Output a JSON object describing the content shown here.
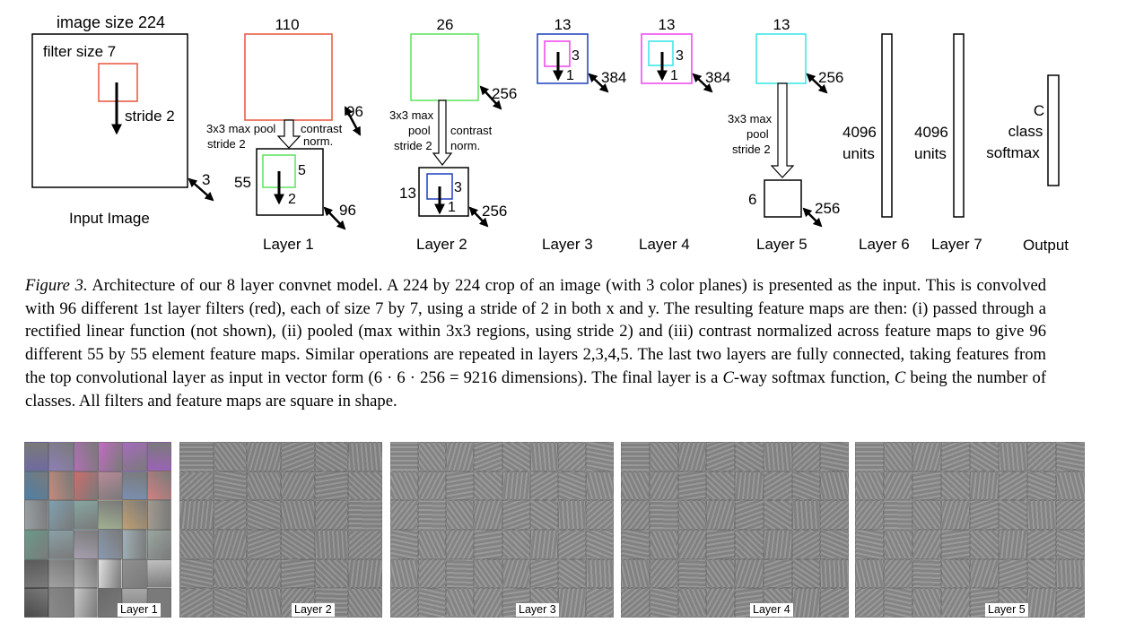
{
  "diagram": {
    "input": {
      "image_size": "image size 224",
      "filter_size": "filter size 7",
      "stride": "stride 2",
      "depth": "3",
      "label": "Input Image"
    },
    "layer1": {
      "size": "110",
      "pool1": "3x3 max pool",
      "pool2": "stride 2",
      "norm1": "contrast",
      "norm2": "norm.",
      "depth_top": "96",
      "map_size": "55",
      "filter": "5",
      "stride": "2",
      "depth_bottom": "96",
      "label": "Layer 1"
    },
    "layer2": {
      "size": "26",
      "pool1": "3x3 max",
      "pool2": "pool",
      "pool3": "stride 2",
      "norm1": "contrast",
      "norm2": "norm.",
      "depth_top": "256",
      "map_size": "13",
      "filter": "3",
      "stride": "1",
      "depth_bottom": "256",
      "label": "Layer 2"
    },
    "layer3": {
      "size": "13",
      "filter": "3",
      "stride": "1",
      "depth": "384",
      "label": "Layer 3"
    },
    "layer4": {
      "size": "13",
      "filter": "3",
      "stride": "1",
      "depth": "384",
      "label": "Layer 4"
    },
    "layer5": {
      "size": "13",
      "depth_top": "256",
      "pool1": "3x3 max",
      "pool2": "pool",
      "pool3": "stride 2",
      "map_size": "6",
      "depth_bottom": "256",
      "label": "Layer 5"
    },
    "layer6": {
      "units1": "4096",
      "units2": "units",
      "label": "Layer 6"
    },
    "layer7": {
      "units1": "4096",
      "units2": "units",
      "label": "Layer 7"
    },
    "output": {
      "line1": "C",
      "line2": "class",
      "line3": "softmax",
      "label": "Output"
    },
    "colors": {
      "layer1_filter": "#e8553b",
      "layer2_filter": "#5de35d",
      "layer3_filter": "#1f3fbf",
      "layer4_filter": "#ee44ee",
      "layer5_filter": "#33e6e6"
    }
  },
  "caption": {
    "fig": "Figure 3.",
    "p1": " Architecture of our 8 layer convnet model. A 224 by 224 crop of an image (with 3 color planes) is presented as the input. This is convolved with 96 different 1st layer filters (red), each of size 7 by 7, using a stride of 2 in both x and y. The resulting feature maps are then: (i) passed through a rectified linear function (not shown), (ii) pooled (max within 3x3 regions, using stride 2) and (iii) contrast normalized across feature maps to give 96 different 55 by 55 element feature maps. Similar operations are repeated in layers 2,3,4,5. The last two layers are fully connected, taking features from the top convolutional layer as input in vector form (6 · 6 · 256 = 9216 dimensions). The final layer is a ",
    "c1": "C",
    "p2": "-way softmax function, ",
    "c2": "C",
    "p3": " being the number of classes. All filters and feature maps are square in shape."
  },
  "panels": [
    {
      "label": "Layer 1",
      "cols": 6,
      "rows": 6,
      "bg": "#707070"
    },
    {
      "label": "Layer 2",
      "cols": 6,
      "rows": 6,
      "bg": "#8a8a8a"
    },
    {
      "label": "Layer 3",
      "cols": 8,
      "rows": 6,
      "bg": "#8e8e8e"
    },
    {
      "label": "Layer 4",
      "cols": 8,
      "rows": 6,
      "bg": "#8c8c8c"
    },
    {
      "label": "Layer 5",
      "cols": 8,
      "rows": 6,
      "bg": "#8e8e8e"
    }
  ]
}
